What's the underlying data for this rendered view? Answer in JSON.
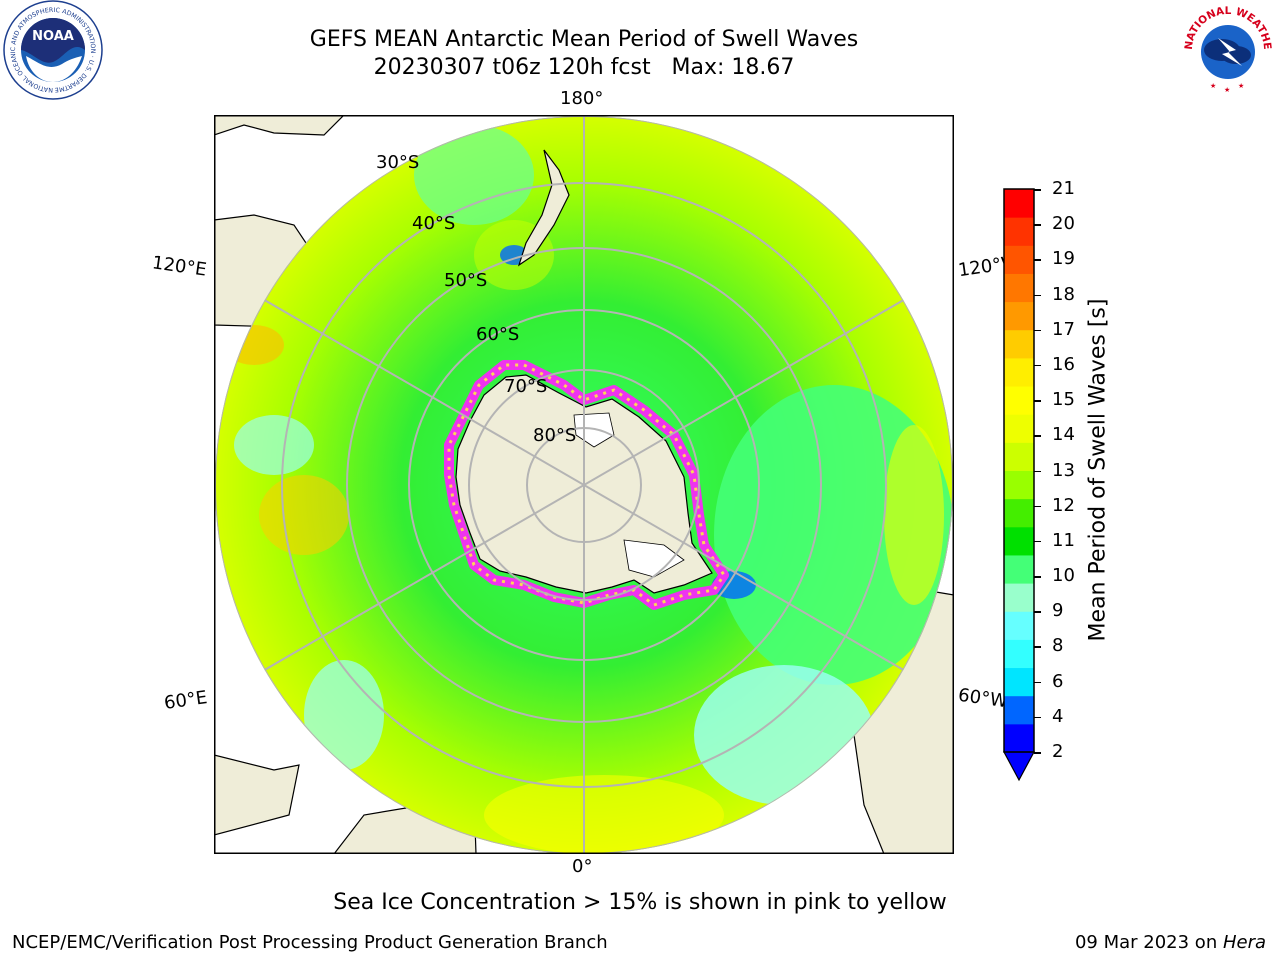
{
  "title": {
    "line1": "GEFS MEAN Antarctic Mean Period of Swell Waves",
    "line2": "20230307 t06z 120h fcst   Max: 18.67"
  },
  "map": {
    "projection": "south-polar-stereographic",
    "graticule_labels": {
      "top": "180°",
      "bottom": "0°",
      "left_upper": "120°E",
      "left_lower": "60°E",
      "right_upper": "120°W",
      "right_lower": "60°W",
      "lat_30": "30°S",
      "lat_40": "40°S",
      "lat_50": "50°S",
      "lat_60": "60°S",
      "lat_70": "70°S",
      "lat_80": "80°S"
    },
    "colors": {
      "land": "#efedd8",
      "sea_ice_low": "#ffff33",
      "sea_ice_high": "#ee33ee",
      "graticule": "#b4b4b4"
    }
  },
  "colorbar": {
    "title": "Mean Period of Swell Waves [s]",
    "ticks": [
      "21",
      "20",
      "19",
      "18",
      "17",
      "16",
      "15",
      "14",
      "13",
      "12",
      "11",
      "10",
      "9",
      "8",
      "6",
      "4",
      "2"
    ],
    "colors": [
      "#0000ff",
      "#0066ff",
      "#00e5ff",
      "#33ffff",
      "#66ffff",
      "#99ffcc",
      "#44ff77",
      "#00e000",
      "#44ee00",
      "#99ff00",
      "#ccff00",
      "#eeff00",
      "#ffff00",
      "#ffee00",
      "#ffcc00",
      "#ff9900",
      "#ff7700",
      "#ff5500",
      "#ff3300",
      "#ff0000"
    ]
  },
  "logos": {
    "left_text": "NOAA",
    "left_ring": "NATIONAL OCEANIC AND ATMOSPHERIC ADMINISTRATION · U.S. DEPARTMENT OF COMMERCE",
    "right_ring": "NATIONAL WEATHER SERVICE"
  },
  "footer": {
    "ice_note": "Sea Ice Concentration > 15% is shown in pink to yellow",
    "credit": "NCEP/EMC/Verification Post Processing Product Generation Branch",
    "date": "09 Mar 2023 on ",
    "host": "Hera"
  }
}
